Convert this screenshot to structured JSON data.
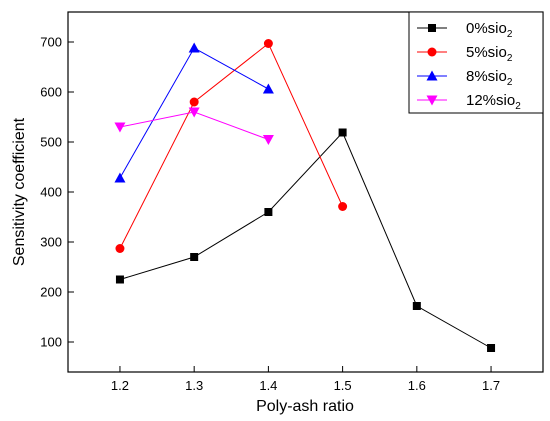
{
  "chart_data": {
    "type": "line",
    "title": "",
    "xlabel": "Poly-ash ratio",
    "ylabel": "Sensitivity coefficient",
    "xlim": [
      1.13,
      1.77
    ],
    "ylim": [
      40,
      760
    ],
    "xticks": [
      1.2,
      1.3,
      1.4,
      1.5,
      1.6,
      1.7
    ],
    "xtick_labels": [
      "1.2",
      "1.3",
      "1.4",
      "1.5",
      "1.6",
      "1.7"
    ],
    "yticks": [
      100,
      200,
      300,
      400,
      500,
      600,
      700
    ],
    "ytick_labels": [
      "100",
      "200",
      "300",
      "400",
      "500",
      "600",
      "700"
    ],
    "grid": false,
    "legend_position": "top-right",
    "series": [
      {
        "name": "0%sio",
        "subscript": "2",
        "color": "#000000",
        "marker": "square",
        "x": [
          1.2,
          1.3,
          1.4,
          1.5,
          1.6,
          1.7
        ],
        "y": [
          225,
          270,
          360,
          519,
          172,
          88
        ]
      },
      {
        "name": "5%sio",
        "subscript": "2",
        "color": "#ff0000",
        "marker": "circle",
        "x": [
          1.2,
          1.3,
          1.4,
          1.5
        ],
        "y": [
          287,
          580,
          697,
          371
        ]
      },
      {
        "name": "8%sio",
        "subscript": "2",
        "color": "#0000ff",
        "marker": "triangle-up",
        "x": [
          1.2,
          1.3,
          1.4
        ],
        "y": [
          428,
          688,
          606
        ]
      },
      {
        "name": "12%sio",
        "subscript": "2",
        "color": "#ff00ff",
        "marker": "triangle-down",
        "x": [
          1.2,
          1.3,
          1.4
        ],
        "y": [
          530,
          560,
          505
        ]
      }
    ]
  }
}
